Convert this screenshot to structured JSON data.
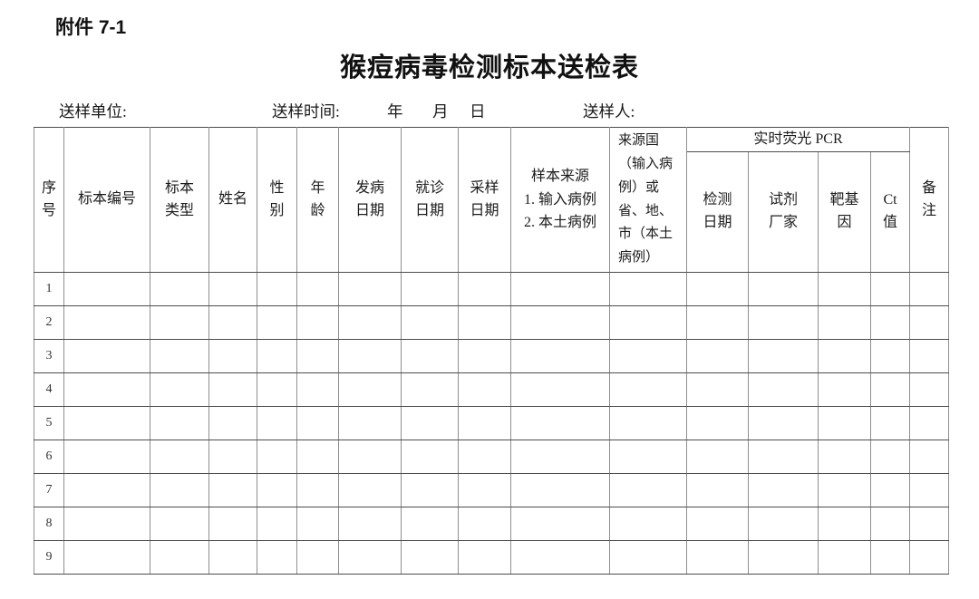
{
  "page": {
    "attachment_label": "附件 7-1",
    "title": "猴痘病毒检测标本送检表"
  },
  "meta": {
    "unit_label": "送样单位:",
    "time_label": "送样时间:",
    "year_label": "年",
    "month_label": "月",
    "day_label": "日",
    "sender_label": "送样人:"
  },
  "table": {
    "header": {
      "seq": "序\n号",
      "specimen_no": "标本编号",
      "specimen_type": "标本\n类型",
      "name": "姓名",
      "gender": "性\n别",
      "age": "年\n龄",
      "onset_date": "发病\n日期",
      "visit_date": "就诊\n日期",
      "sampling_date": "采样\n日期",
      "sample_source": "样本来源\n1. 输入病例\n2. 本土病例",
      "origin": "来源国（输入病例）或省、地、市（本土病例）",
      "pcr_group": "实时荧光 PCR",
      "test_date": "检测\n日期",
      "reagent_maker": "试剂\n厂家",
      "target_gene": "靶基\n因",
      "ct_value": "Ct\n值",
      "remark": "备\n注"
    },
    "rows": [
      "1",
      "2",
      "3",
      "4",
      "5",
      "6",
      "7",
      "8",
      "9"
    ]
  },
  "colors": {
    "text": "#1a1a1a",
    "grid_horizontal": "#4d4d4d",
    "grid_vertical": "#8f8f8f",
    "background": "#ffffff"
  }
}
